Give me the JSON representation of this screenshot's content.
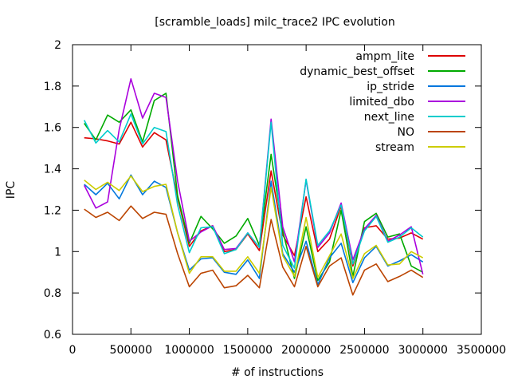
{
  "chart_data": {
    "type": "line",
    "title": "[scramble_loads] milc_trace2 IPC evolution",
    "xlabel": "# of instructions",
    "ylabel": "IPC",
    "xlim": [
      0,
      3500000
    ],
    "ylim": [
      0.6,
      2.0
    ],
    "xticks": [
      0,
      500000,
      1000000,
      1500000,
      2000000,
      2500000,
      3000000,
      3500000
    ],
    "yticks": [
      0.6,
      0.8,
      1.0,
      1.2,
      1.4,
      1.6,
      1.8,
      2.0
    ],
    "xtick_labels": [
      "0",
      "500000",
      "1000000",
      "1500000",
      "2000000",
      "2500000",
      "3000000",
      "3500000"
    ],
    "ytick_labels": [
      "0.6",
      "0.8",
      "1",
      "1.2",
      "1.4",
      "1.6",
      "1.8",
      "2"
    ],
    "grid": false,
    "legend_position": "top-right",
    "x": [
      100000,
      200000,
      300000,
      400000,
      500000,
      600000,
      700000,
      800000,
      900000,
      1000000,
      1100000,
      1200000,
      1300000,
      1400000,
      1500000,
      1600000,
      1700000,
      1800000,
      1900000,
      2000000,
      2100000,
      2200000,
      2300000,
      2400000,
      2500000,
      2600000,
      2700000,
      2800000,
      2900000,
      3000000
    ],
    "series": [
      {
        "name": "ampm_lite",
        "color": "#dd0000",
        "values": [
          1.55,
          1.545,
          1.535,
          1.52,
          1.625,
          1.505,
          1.575,
          1.54,
          1.26,
          1.025,
          1.1,
          1.125,
          1.0,
          1.01,
          1.085,
          1.005,
          1.39,
          1.08,
          0.98,
          1.265,
          1.0,
          1.06,
          1.22,
          0.93,
          1.115,
          1.125,
          1.06,
          1.065,
          1.09,
          1.06
        ]
      },
      {
        "name": "dynamic_best_offset",
        "color": "#00aa00",
        "values": [
          1.62,
          1.54,
          1.66,
          1.625,
          1.685,
          1.53,
          1.73,
          1.765,
          1.27,
          1.04,
          1.17,
          1.11,
          1.04,
          1.075,
          1.16,
          1.03,
          1.47,
          1.1,
          0.87,
          1.12,
          0.86,
          0.95,
          1.2,
          0.88,
          1.145,
          1.185,
          1.07,
          1.085,
          0.93,
          0.9
        ]
      },
      {
        "name": "ip_stride",
        "color": "#0077dd",
        "values": [
          1.325,
          1.275,
          1.33,
          1.255,
          1.37,
          1.275,
          1.34,
          1.31,
          1.09,
          0.91,
          0.965,
          0.97,
          0.9,
          0.89,
          0.96,
          0.87,
          1.34,
          0.99,
          0.9,
          1.05,
          0.84,
          0.97,
          1.04,
          0.85,
          0.97,
          1.025,
          0.93,
          0.955,
          0.985,
          0.95
        ]
      },
      {
        "name": "limited_dbo",
        "color": "#aa00dd",
        "values": [
          1.32,
          1.21,
          1.24,
          1.59,
          1.835,
          1.645,
          1.765,
          1.745,
          1.34,
          1.05,
          1.095,
          1.125,
          1.01,
          1.015,
          1.09,
          1.02,
          1.64,
          1.12,
          0.95,
          1.345,
          1.02,
          1.09,
          1.235,
          0.96,
          1.11,
          1.175,
          1.05,
          1.08,
          1.12,
          0.89
        ]
      },
      {
        "name": "next_line",
        "color": "#00cccc",
        "values": [
          1.635,
          1.525,
          1.585,
          1.53,
          1.665,
          1.52,
          1.6,
          1.58,
          1.225,
          0.995,
          1.115,
          1.12,
          0.99,
          1.01,
          1.09,
          1.02,
          1.625,
          1.03,
          0.92,
          1.35,
          1.03,
          1.1,
          1.225,
          0.94,
          1.1,
          1.17,
          1.045,
          1.07,
          1.115,
          1.07
        ]
      },
      {
        "name": "NO",
        "color": "#bb4400",
        "values": [
          1.205,
          1.165,
          1.19,
          1.15,
          1.22,
          1.16,
          1.19,
          1.18,
          0.99,
          0.83,
          0.895,
          0.91,
          0.825,
          0.835,
          0.885,
          0.825,
          1.155,
          0.925,
          0.83,
          1.025,
          0.83,
          0.93,
          0.97,
          0.79,
          0.91,
          0.94,
          0.855,
          0.88,
          0.91,
          0.875
        ]
      },
      {
        "name": "stream",
        "color": "#cccc00",
        "values": [
          1.345,
          1.3,
          1.335,
          1.295,
          1.365,
          1.29,
          1.315,
          1.325,
          1.09,
          0.895,
          0.975,
          0.975,
          0.905,
          0.905,
          0.975,
          0.895,
          1.31,
          0.98,
          0.88,
          1.165,
          0.875,
          0.98,
          1.085,
          0.87,
          0.99,
          1.03,
          0.935,
          0.94,
          1.0,
          0.97
        ]
      }
    ]
  }
}
